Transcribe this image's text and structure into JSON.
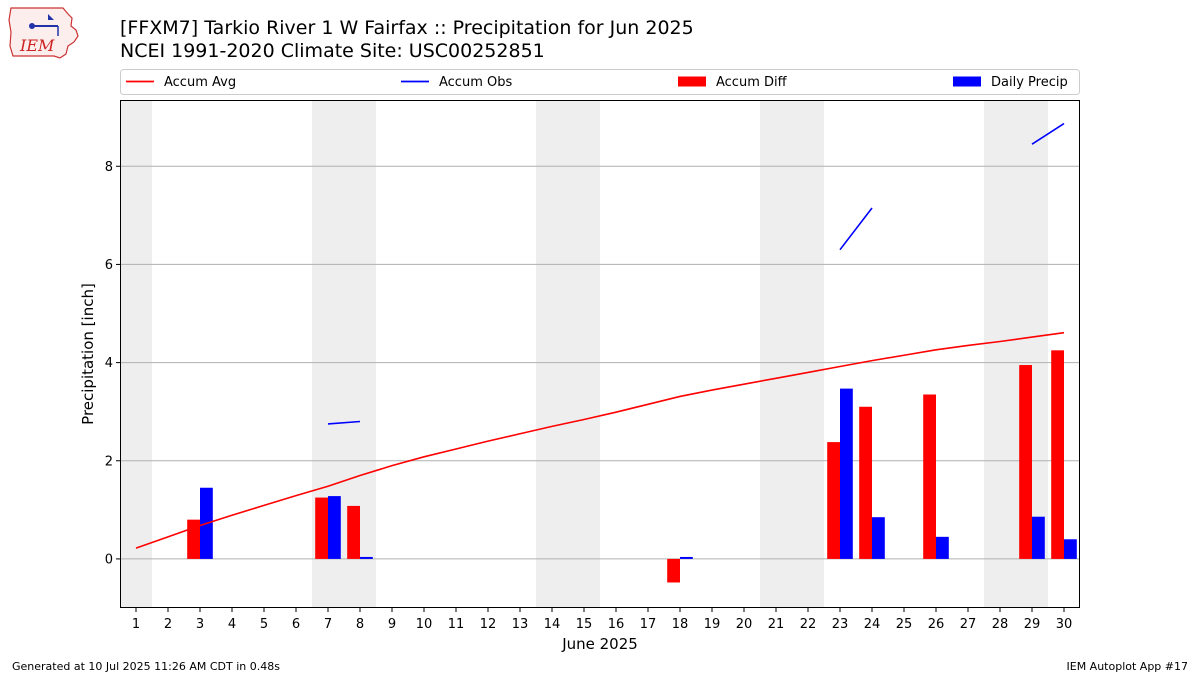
{
  "header": {
    "title_line1": "[FFXM7] Tarkio River 1 W Fairfax :: Precipitation for Jun 2025",
    "title_line2": "NCEI 1991-2020 Climate Site: USC00252851",
    "logo_text": "IEM"
  },
  "footer": {
    "left": "Generated at 10 Jul 2025 11:26 AM CDT in 0.48s",
    "right": "IEM Autoplot App #17"
  },
  "colors": {
    "accum_avg": "#ff0000",
    "accum_obs": "#0000ff",
    "accum_diff": "#ff0000",
    "daily_precip": "#0000ff",
    "weekend_shade": "#eeeeee",
    "grid": "#b0b0b0"
  },
  "chart_data": {
    "type": "bar",
    "xlabel": "June 2025",
    "ylabel": "Precipitation [inch]",
    "xlim": [
      0.5,
      30.5
    ],
    "ylim": [
      -1.0,
      9.35
    ],
    "yticks": [
      0,
      2,
      4,
      6,
      8
    ],
    "grid": "horizontal",
    "legend_placement": "top, outside plot",
    "days": [
      1,
      2,
      3,
      4,
      5,
      6,
      7,
      8,
      9,
      10,
      11,
      12,
      13,
      14,
      15,
      16,
      17,
      18,
      19,
      20,
      21,
      22,
      23,
      24,
      25,
      26,
      27,
      28,
      29,
      30
    ],
    "weekend_days": [
      1,
      7,
      8,
      14,
      15,
      21,
      22,
      28,
      29
    ],
    "series": [
      {
        "name": "Accum Avg",
        "kind": "line",
        "values": [
          0.22,
          0.45,
          0.68,
          0.89,
          1.09,
          1.29,
          1.48,
          1.7,
          1.9,
          2.08,
          2.24,
          2.4,
          2.55,
          2.7,
          2.84,
          2.99,
          3.15,
          3.31,
          3.44,
          3.56,
          3.68,
          3.8,
          3.92,
          4.04,
          4.15,
          4.26,
          4.35,
          4.43,
          4.52,
          4.61
        ]
      },
      {
        "name": "Accum Obs",
        "kind": "segments",
        "segments": [
          {
            "x": [
              7,
              8
            ],
            "y": [
              2.75,
              2.8
            ]
          },
          {
            "x": [
              23,
              24
            ],
            "y": [
              6.3,
              7.15
            ]
          },
          {
            "x": [
              29,
              30
            ],
            "y": [
              8.45,
              8.87
            ]
          }
        ]
      },
      {
        "name": "Accum Diff",
        "kind": "bar",
        "offset": -0.2,
        "points": [
          {
            "day": 3,
            "value": 0.8
          },
          {
            "day": 7,
            "value": 1.25
          },
          {
            "day": 8,
            "value": 1.08
          },
          {
            "day": 18,
            "value": -0.48
          },
          {
            "day": 23,
            "value": 2.38
          },
          {
            "day": 24,
            "value": 3.1
          },
          {
            "day": 26,
            "value": 3.35
          },
          {
            "day": 29,
            "value": 3.95
          },
          {
            "day": 30,
            "value": 4.25
          }
        ]
      },
      {
        "name": "Daily Precip",
        "kind": "bar",
        "offset": 0.2,
        "points": [
          {
            "day": 3,
            "value": 1.45
          },
          {
            "day": 7,
            "value": 1.28
          },
          {
            "day": 8,
            "value": 0.04
          },
          {
            "day": 18,
            "value": 0.04
          },
          {
            "day": 23,
            "value": 3.47
          },
          {
            "day": 24,
            "value": 0.85
          },
          {
            "day": 26,
            "value": 0.45
          },
          {
            "day": 29,
            "value": 0.86
          },
          {
            "day": 30,
            "value": 0.4
          }
        ]
      }
    ]
  }
}
